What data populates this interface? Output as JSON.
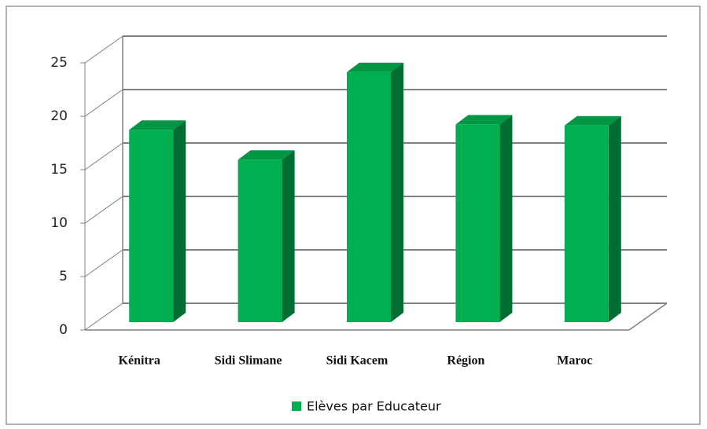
{
  "chart_data": {
    "type": "bar3d",
    "categories": [
      "Kénitra",
      "Sidi Slimane",
      "Sidi Kacem",
      "Région",
      "Maroc"
    ],
    "series": [
      {
        "name": "Elèves par Educateur",
        "color": "#00b050",
        "values": [
          18,
          15.2,
          23.4,
          18.5,
          18.4
        ]
      }
    ],
    "ylim": [
      0,
      25
    ],
    "yticks": [
      0,
      5,
      10,
      15,
      20,
      25
    ],
    "grid": true,
    "legend": "bottom"
  }
}
